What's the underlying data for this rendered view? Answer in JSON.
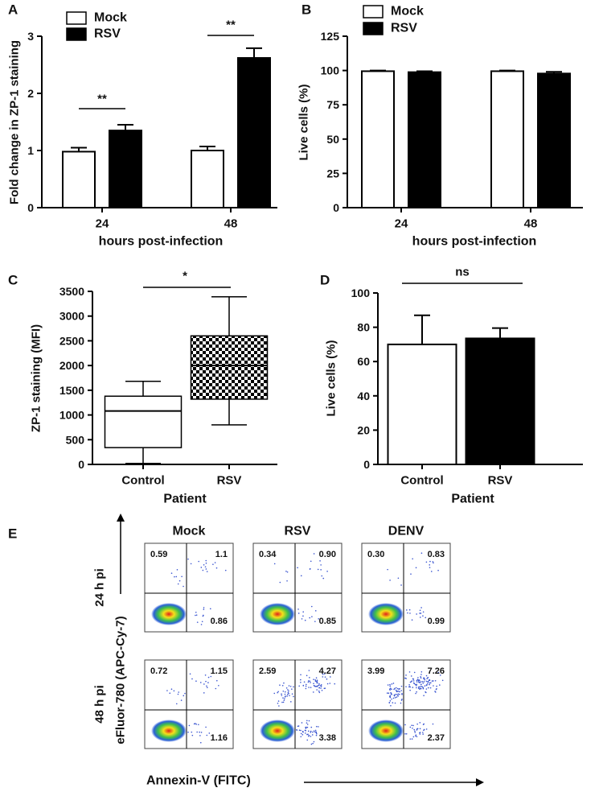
{
  "chart_data": [
    {
      "type": "bar",
      "panel": "A",
      "ylabel": "Fold change in ZP-1 staining",
      "xlabel": "hours post-infection",
      "categories": [
        "24",
        "48"
      ],
      "series": [
        {
          "name": "Mock",
          "color": "#ffffff",
          "values": [
            0.98,
            1.0
          ],
          "errors": [
            0.07,
            0.07
          ]
        },
        {
          "name": "RSV",
          "color": "#000000",
          "values": [
            1.35,
            2.62
          ],
          "errors": [
            0.1,
            0.17
          ]
        }
      ],
      "ylim": [
        0,
        3
      ],
      "yticks": [
        0,
        1,
        2,
        3
      ],
      "annotations": [
        "**",
        "**"
      ]
    },
    {
      "type": "bar",
      "panel": "B",
      "ylabel": "Live cells (%)",
      "xlabel": "hours post-infection",
      "categories": [
        "24",
        "48"
      ],
      "series": [
        {
          "name": "Mock",
          "color": "#ffffff",
          "values": [
            99.5,
            99.5
          ],
          "errors": [
            0.5,
            0.5
          ]
        },
        {
          "name": "RSV",
          "color": "#000000",
          "values": [
            98.8,
            97.8
          ],
          "errors": [
            0.7,
            1.2
          ]
        }
      ],
      "ylim": [
        0,
        125
      ],
      "yticks": [
        0,
        25,
        50,
        75,
        100,
        125
      ]
    },
    {
      "type": "box",
      "panel": "C",
      "ylabel": "ZP-1 staining (MFI)",
      "xlabel": "Patient",
      "categories": [
        "Control",
        "RSV"
      ],
      "min": [
        20,
        800
      ],
      "q1": [
        340,
        1320
      ],
      "median": [
        1080,
        2000
      ],
      "q3": [
        1380,
        2600
      ],
      "max": [
        1680,
        3390
      ],
      "fills": [
        "white",
        "checkerboard"
      ],
      "ylim": [
        0,
        3500
      ],
      "yticks": [
        0,
        500,
        1000,
        1500,
        2000,
        2500,
        3000,
        3500
      ],
      "annotations": [
        "*"
      ]
    },
    {
      "type": "bar",
      "panel": "D",
      "ylabel": "Live cells (%)",
      "xlabel": "Patient",
      "categories": [
        "Control",
        "RSV"
      ],
      "values": [
        70,
        73.5
      ],
      "errors": [
        17,
        6
      ],
      "colors": [
        "#ffffff",
        "#000000"
      ],
      "ylim": [
        0,
        100
      ],
      "yticks": [
        0,
        20,
        40,
        60,
        80,
        100
      ],
      "annotations": [
        "ns"
      ]
    },
    {
      "type": "flow",
      "panel": "E",
      "ylabel": "eFluor-780 (APC-Cy-7)",
      "xlabel": "Annexin-V (FITC)",
      "columns": [
        "Mock",
        "RSV",
        "DENV"
      ],
      "rows": [
        "24 h pi",
        "48 h pi"
      ],
      "values": [
        [
          [
            0.59,
            1.1,
            0.86
          ],
          [
            0.34,
            0.9,
            0.85
          ],
          [
            0.3,
            0.83,
            0.99
          ]
        ],
        [
          [
            0.72,
            1.15,
            1.16
          ],
          [
            2.59,
            4.27,
            3.38
          ],
          [
            3.99,
            7.26,
            2.37
          ]
        ]
      ],
      "value_labels": [
        [
          [
            "0.59",
            "1.1",
            "0.86"
          ],
          [
            "0.34",
            "0.90",
            "0.85"
          ],
          [
            "0.30",
            "0.83",
            "0.99"
          ]
        ],
        [
          [
            "0.72",
            "1.15",
            "1.16"
          ],
          [
            "2.59",
            "4.27",
            "3.38"
          ],
          [
            "3.99",
            "7.26",
            "2.37"
          ]
        ]
      ]
    }
  ]
}
